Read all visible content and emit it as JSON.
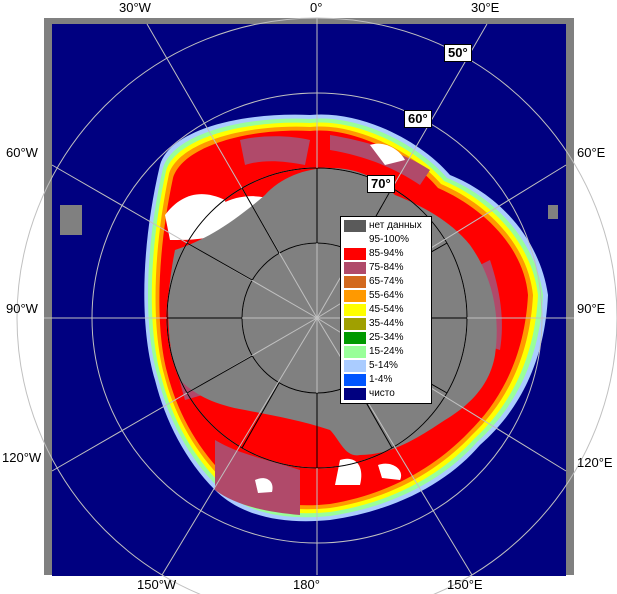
{
  "longitude_labels": {
    "top": [
      "30°W",
      "0°",
      "30°E"
    ],
    "left": [
      "60°W",
      "90°W",
      "120°W"
    ],
    "right": [
      "60°E",
      "90°E",
      "120°E"
    ],
    "bottom": [
      "150°W",
      "180°",
      "150°E"
    ]
  },
  "latitude_labels": [
    "50°",
    "60°",
    "70°"
  ],
  "legend": [
    {
      "label": "нет данных",
      "color": "#5a5a5a"
    },
    {
      "label": "95-100%",
      "color": "#ffffff"
    },
    {
      "label": "85-94%",
      "color": "#ff0000"
    },
    {
      "label": "75-84%",
      "color": "#b04a6a"
    },
    {
      "label": "65-74%",
      "color": "#d2691e"
    },
    {
      "label": "55-64%",
      "color": "#ff9900"
    },
    {
      "label": "45-54%",
      "color": "#ffff00"
    },
    {
      "label": "35-44%",
      "color": "#a0a000"
    },
    {
      "label": "25-34%",
      "color": "#009900"
    },
    {
      "label": "15-24%",
      "color": "#99ff99"
    },
    {
      "label": "5-14%",
      "color": "#aaccff"
    },
    {
      "label": "1-4%",
      "color": "#0055ff"
    },
    {
      "label": "чисто",
      "color": "#000080"
    }
  ],
  "colors": {
    "ocean": "#000080",
    "land": "#808080",
    "frame": "#808080",
    "grid": "#c0c0c0"
  }
}
